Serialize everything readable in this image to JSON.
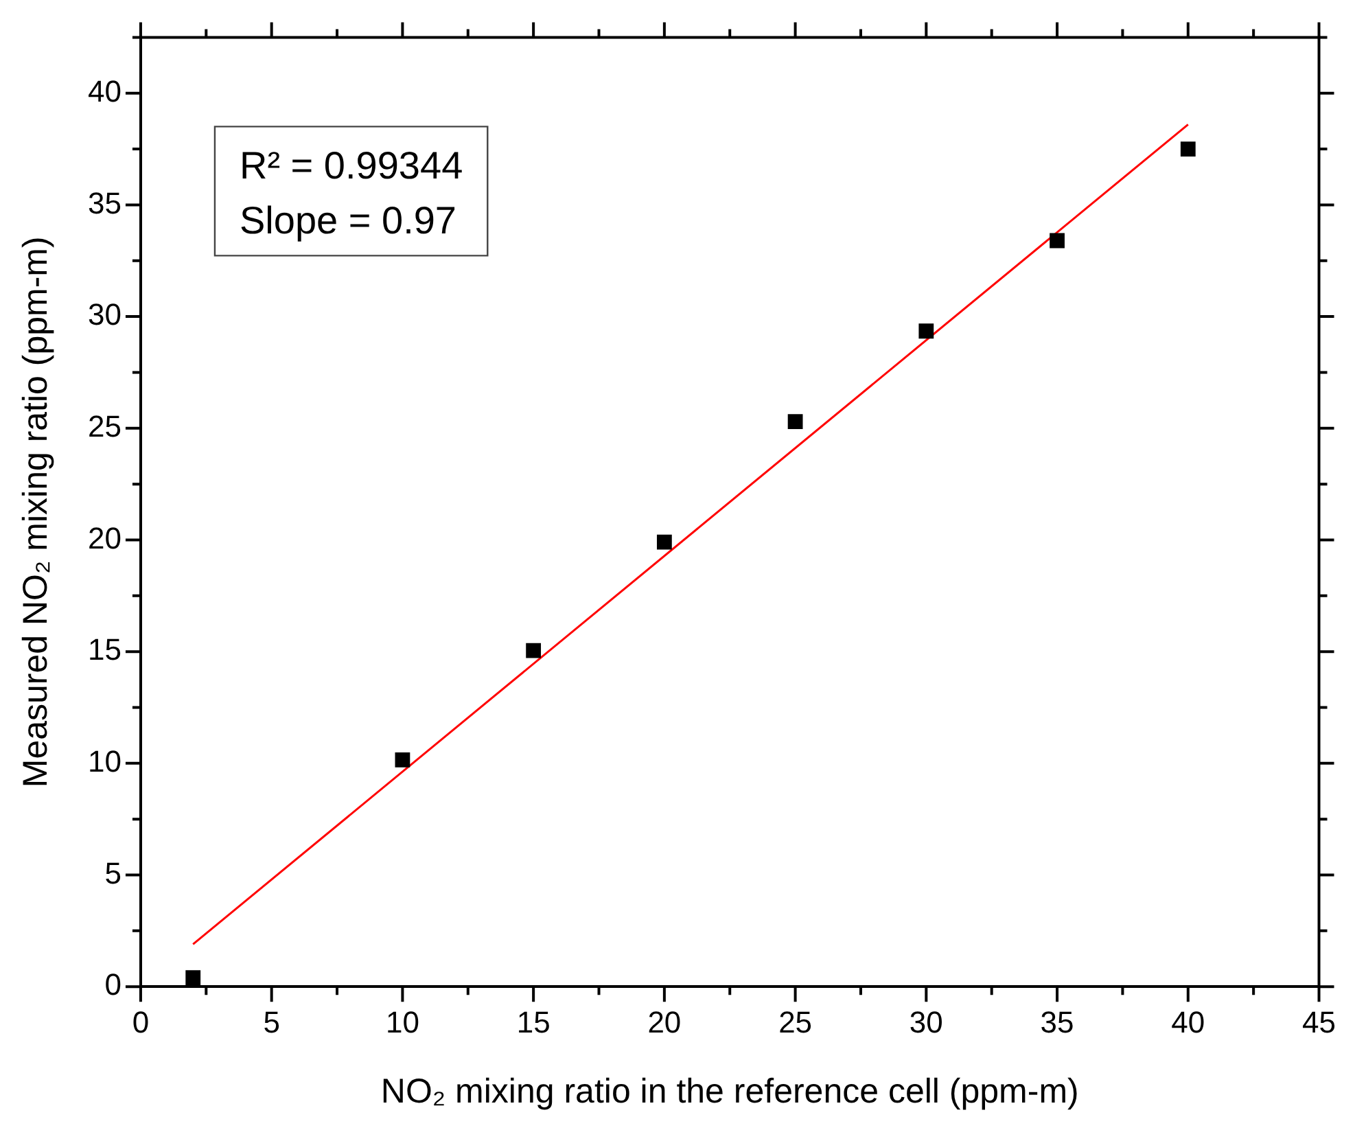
{
  "chart_data": {
    "type": "scatter",
    "xlabel": "NO₂ mixing ratio in the reference cell (ppm-m)",
    "ylabel": "Measured NO₂ mixing ratio (ppm-m)",
    "x": [
      2,
      10,
      15,
      20,
      25,
      30,
      35,
      40
    ],
    "series": [
      {
        "color": "#000000",
        "marker": "square",
        "values": [
          0.4,
          10.15,
          15.05,
          19.9,
          25.3,
          29.35,
          33.4,
          37.5
        ]
      },
      {
        "type": "line",
        "color": "#ff0000",
        "marker": "none",
        "x": [
          2,
          40
        ],
        "values": [
          1.9,
          38.6
        ]
      }
    ],
    "xlim": [
      0,
      45
    ],
    "xticks": [
      0,
      {
        "value": 2.5,
        "label": null
      },
      5,
      {
        "value": 7.5,
        "label": null
      },
      10,
      {
        "value": 12.5,
        "label": null
      },
      15,
      {
        "value": 17.5,
        "label": null
      },
      20,
      {
        "value": 22.5,
        "label": null
      },
      25,
      {
        "value": 27.5,
        "label": null
      },
      30,
      {
        "value": 32.5,
        "label": null
      },
      35,
      {
        "value": 37.5,
        "label": null
      },
      40,
      {
        "value": 42.5,
        "label": null
      },
      45
    ],
    "ylim": [
      0,
      42.5
    ],
    "yticks": [
      0,
      {
        "value": 2.5,
        "label": null
      },
      5,
      {
        "value": 7.5,
        "label": null
      },
      10,
      {
        "value": 12.5,
        "label": null
      },
      15,
      {
        "value": 17.5,
        "label": null
      },
      20,
      {
        "value": 22.5,
        "label": null
      },
      25,
      {
        "value": 27.5,
        "label": null
      },
      30,
      {
        "value": 32.5,
        "label": null
      },
      35,
      {
        "value": 37.5,
        "label": null
      },
      40,
      {
        "value": 42.5,
        "label": null
      }
    ],
    "annotations": [
      "R² = 0.99344",
      "Slope = 0.97"
    ],
    "grid": false,
    "legend": false
  }
}
